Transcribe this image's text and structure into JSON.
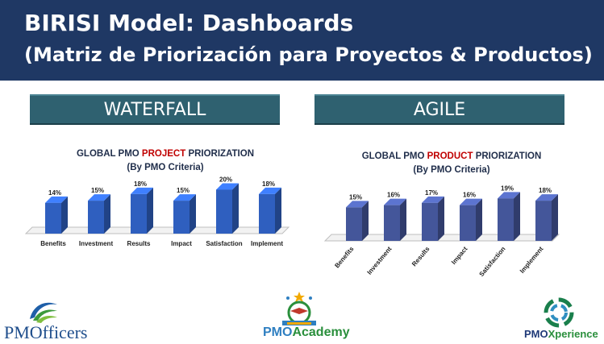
{
  "header": {
    "title": "BIRISI Model: Dashboards",
    "subtitle": "(Matriz de Priorización para Proyectos & Productos)"
  },
  "sections": {
    "left": "WATERFALL",
    "right": "AGILE"
  },
  "chart_data": [
    {
      "type": "bar",
      "title_pre": "GLOBAL PMO ",
      "title_hl": "PROJECT",
      "title_post": " PRIORIZATION",
      "subtitle": "(By PMO Criteria)",
      "categories": [
        "Benefits",
        "Investment",
        "Results",
        "Impact",
        "Satisfaction",
        "Implement"
      ],
      "values": [
        14,
        15,
        18,
        15,
        20,
        18
      ],
      "labels": [
        "14%",
        "15%",
        "18%",
        "15%",
        "20%",
        "18%"
      ],
      "ylim": [
        0,
        22
      ],
      "bar_color": "#2f5fbf"
    },
    {
      "type": "bar",
      "title_pre": "GLOBAL PMO ",
      "title_hl": "PRODUCT",
      "title_post": " PRIORIZATION",
      "subtitle": "(By PMO Criteria)",
      "categories": [
        "Benefits",
        "Investment",
        "Results",
        "Impact",
        "Satisfaction",
        "Implement"
      ],
      "values": [
        15,
        16,
        17,
        16,
        19,
        18
      ],
      "labels": [
        "15%",
        "16%",
        "17%",
        "16%",
        "19%",
        "18%"
      ],
      "ylim": [
        0,
        22
      ],
      "bar_color": "#44569a"
    }
  ],
  "logos": {
    "left": "PMOfficers",
    "center_pre": "PMO",
    "center_post": "Academy",
    "right_pre": "PMO",
    "right_post": "Xperience"
  },
  "colors": {
    "header_bg": "#1f3864",
    "section_bg": "#2f6170",
    "highlight": "#c00000"
  }
}
